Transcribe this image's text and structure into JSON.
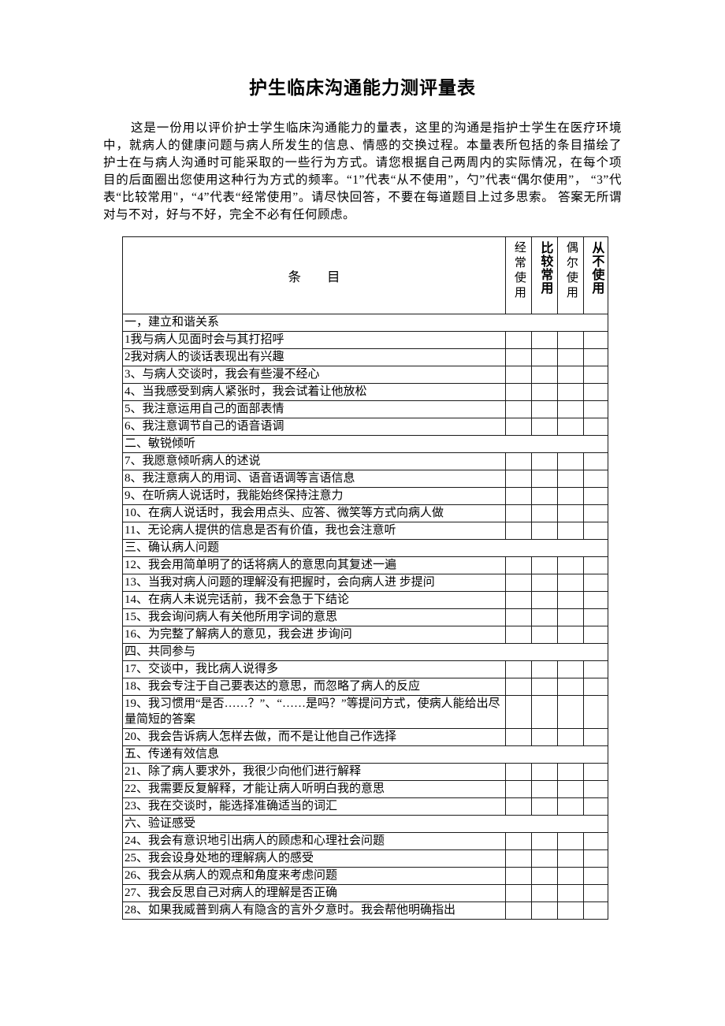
{
  "page": {
    "title": "护生临床沟通能力测评量表",
    "intro": "这是一份用以评价护士学生临床沟通能力的量表，这里的沟通是指护士学生在医疗环境 中，就病人的健康问题与病人所发生的信息、情感的交换过程。本量表所包括的条目描绘了 护士在与病人沟通时可能采取的一些行为方式。请您根据自己两周内的实际情况，在每个项 目的后面圈出您使用这种行为方式的频率。“1”代表“从不使用”，勺”代表“偶尔使用”， “3”代表“比较常用\"，“4”代表“经常使用”。请尽快回答，不要在每道题目上过多思索。 答案无所谓对与不对，好与不好，完全不必有任何顾虑。"
  },
  "table": {
    "item_header": "条　　目",
    "rating_headers": [
      {
        "label": "经常使用",
        "bold": false
      },
      {
        "label": "比较常用",
        "bold": true
      },
      {
        "label": "偶尔使用",
        "bold": false
      },
      {
        "label": "从不使用",
        "bold": true
      }
    ],
    "rows": [
      {
        "type": "section",
        "text": "一，建立和谐关系"
      },
      {
        "type": "item",
        "text": "1我与病人见面时会与其打招呼"
      },
      {
        "type": "item",
        "text": "2我对病人的谈话表现出有兴趣"
      },
      {
        "type": "item",
        "text": "3、与病人交谈时，我会有些漫不经心"
      },
      {
        "type": "item",
        "text": "4、当我感受到病人紧张时，我会试着让他放松"
      },
      {
        "type": "item",
        "text": "5、我注意运用自己的面部表情"
      },
      {
        "type": "item",
        "text": "6、我注意调节自己的语音语调"
      },
      {
        "type": "section",
        "text": "二、敏锐倾听"
      },
      {
        "type": "item",
        "text": "7、我愿意倾听病人的述说"
      },
      {
        "type": "item",
        "text": "8、我注意病人的用词、语音语调等言语信息"
      },
      {
        "type": "item",
        "text": "9、在听病人说话时，我能始终保持注意力"
      },
      {
        "type": "item",
        "text": "10、在病人说话时，我会用点头、应答、微笑等方式向病人做"
      },
      {
        "type": "item",
        "text": "11、无论病人提供的信息是否有价值，我也会注意听"
      },
      {
        "type": "section",
        "text": "三、确认病人问题"
      },
      {
        "type": "item",
        "text": "12、我会用简单明了的话将病人的意思向其复述一遍"
      },
      {
        "type": "item",
        "text": "13、当我对病人问题的理解没有把握时，会向病人进 步提问"
      },
      {
        "type": "item",
        "text": "14、在病人未说完话前，我不会急于下结论"
      },
      {
        "type": "item",
        "text": "15、我会询问病人有关他所用字词的意思"
      },
      {
        "type": "item",
        "text": "16、为完整了解病人的意见，我会进 步询问"
      },
      {
        "type": "section",
        "text": "四、共同参与"
      },
      {
        "type": "item",
        "text": "17、交谈中，我比病人说得多"
      },
      {
        "type": "item",
        "text": "18、我会专注于自己要表达的意思，而忽略了病人的反应"
      },
      {
        "type": "item",
        "text": "19、我习惯用“是否……？”、“……是吗？”等提问方式，使病人能给出尽量简短的答案"
      },
      {
        "type": "item",
        "text": "20、我会告诉病人怎样去做，而不是让他自己作选择"
      },
      {
        "type": "section",
        "text": "五、传递有效信息"
      },
      {
        "type": "item",
        "text": "21、除了病人要求外，我很少向他们进行解释"
      },
      {
        "type": "item",
        "text": "22、我需要反复解释，才能让病人听明白我的意思"
      },
      {
        "type": "item",
        "text": "23、我在交谈时，能选择准确适当的词汇"
      },
      {
        "type": "section",
        "text": "六、验证感受"
      },
      {
        "type": "item",
        "text": "24、我会有意识地引出病人的顾虑和心理社会问题"
      },
      {
        "type": "item",
        "text": "25、我会设身处地的理解病人的感受"
      },
      {
        "type": "item",
        "text": "26、我会从病人的观点和角度来考虑问题"
      },
      {
        "type": "item",
        "text": "27、我会反思自己对病人的理解是否正确"
      },
      {
        "type": "item",
        "text": "28、如果我威普到病人有隐含的言外夕意时。我会帮他明确指出"
      }
    ]
  }
}
